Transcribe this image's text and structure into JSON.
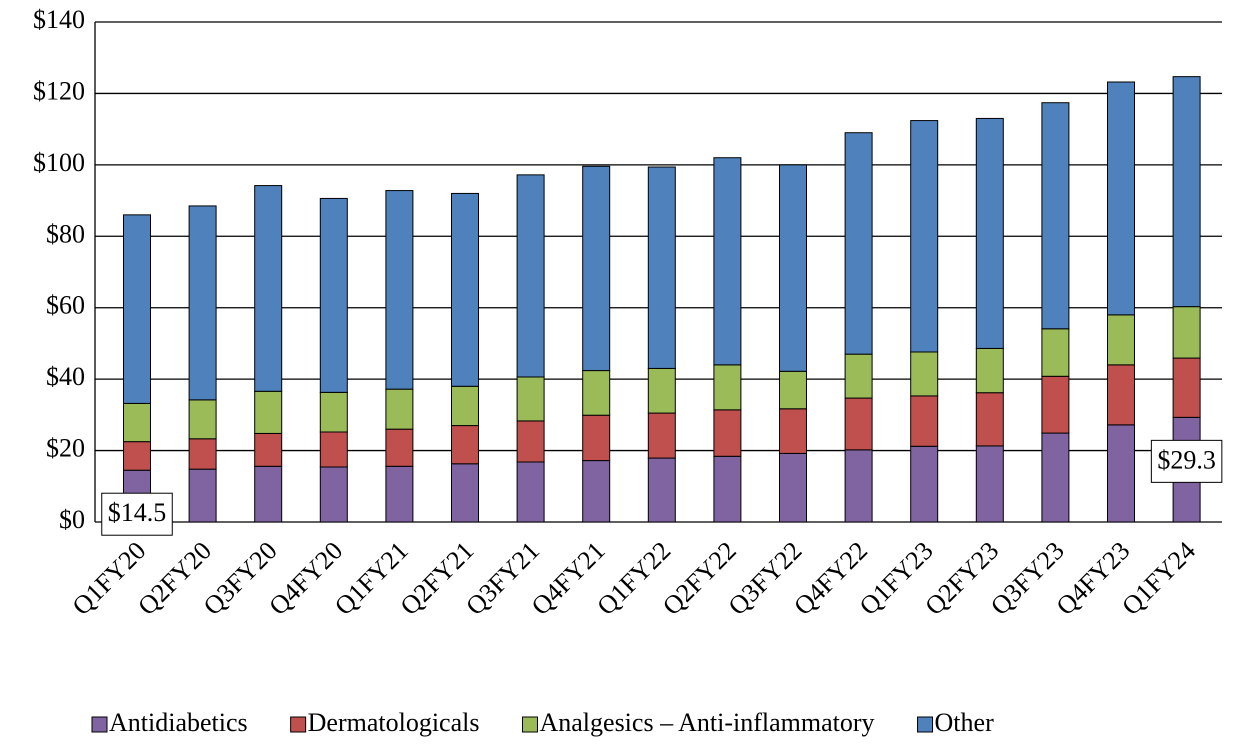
{
  "chart_data": {
    "type": "stacked_bar",
    "categories": [
      "Q1FY20",
      "Q2FY20",
      "Q3FY20",
      "Q4FY20",
      "Q1FY21",
      "Q2FY21",
      "Q3FY21",
      "Q4FY21",
      "Q1FY22",
      "Q2FY22",
      "Q3FY22",
      "Q4FY22",
      "Q1FY23",
      "Q2FY23",
      "Q3FY23",
      "Q4FY23",
      "Q1FY24"
    ],
    "series": [
      {
        "name": "Antidiabetics",
        "color": "#8064a2",
        "values": [
          14.5,
          14.8,
          15.6,
          15.4,
          15.6,
          16.3,
          16.8,
          17.2,
          17.9,
          18.4,
          19.2,
          20.2,
          21.2,
          21.3,
          24.9,
          27.2,
          29.3
        ],
        "value_labels": [
          "$14.5",
          null,
          null,
          null,
          null,
          null,
          null,
          null,
          null,
          null,
          null,
          null,
          null,
          null,
          null,
          null,
          "$29.3"
        ]
      },
      {
        "name": "Dermatologicals",
        "color": "#c0504d",
        "values": [
          8.0,
          8.5,
          9.2,
          9.8,
          10.4,
          10.7,
          11.5,
          12.7,
          12.6,
          13.0,
          12.5,
          14.5,
          14.1,
          14.9,
          15.9,
          16.8,
          16.6
        ]
      },
      {
        "name": "Analgesics – Anti-inflammatory",
        "color": "#9bbb59",
        "values": [
          10.7,
          10.9,
          11.8,
          11.1,
          11.2,
          11.0,
          12.3,
          12.5,
          12.5,
          12.6,
          10.5,
          12.3,
          12.3,
          12.4,
          13.3,
          14.0,
          14.4
        ]
      },
      {
        "name": "Other",
        "color": "#4f81bd",
        "values": [
          52.8,
          54.3,
          57.6,
          54.3,
          55.6,
          54.0,
          56.6,
          57.2,
          56.4,
          58.0,
          57.8,
          62.0,
          64.8,
          64.4,
          63.3,
          65.2,
          64.4
        ]
      }
    ],
    "ylim": [
      0,
      140
    ],
    "yticks": [
      {
        "value": 0,
        "label": "$0"
      },
      {
        "value": 20,
        "label": "$20"
      },
      {
        "value": 40,
        "label": "$40"
      },
      {
        "value": 60,
        "label": "$60"
      },
      {
        "value": 80,
        "label": "$80"
      },
      {
        "value": 100,
        "label": "$100"
      },
      {
        "value": 120,
        "label": "$120"
      },
      {
        "value": 140,
        "label": "$140"
      }
    ],
    "grid": true,
    "legend": "bottom"
  }
}
